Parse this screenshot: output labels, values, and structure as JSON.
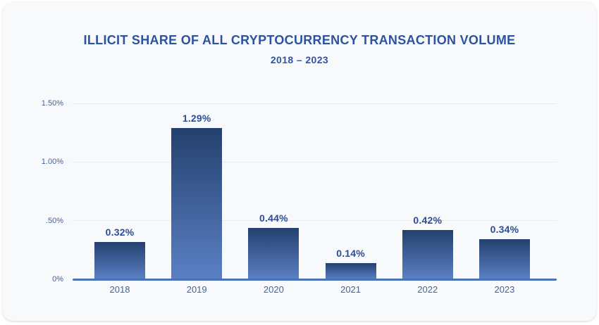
{
  "chart_data": {
    "type": "bar",
    "title": "ILLICIT SHARE OF ALL CRYPTOCURRENCY TRANSACTION VOLUME",
    "subtitle": "2018 – 2023",
    "categories": [
      "2018",
      "2019",
      "2020",
      "2021",
      "2022",
      "2023"
    ],
    "values": [
      0.32,
      1.29,
      0.44,
      0.14,
      0.42,
      0.34
    ],
    "value_labels": [
      "0.32%",
      "1.29%",
      "0.44%",
      "0.14%",
      "0.42%",
      "0.34%"
    ],
    "xlabel": "",
    "ylabel": "",
    "ylim": [
      0,
      1.5
    ],
    "yticks": [
      {
        "value": 1.5,
        "label": "1.50%"
      },
      {
        "value": 1.0,
        "label": "1.00%"
      },
      {
        "value": 0.5,
        "label": ".50%"
      },
      {
        "value": 0.0,
        "label": "0%"
      }
    ],
    "grid": true,
    "legend": false
  },
  "colors": {
    "page_background": "#ffffff",
    "card_background": "#f8f9fa",
    "title": "#2d52a0",
    "subtitle": "#2f55a4",
    "value_label": "#2c4d96",
    "tick_label": "#45639c",
    "gridline": "#e9eaec",
    "axis_line": "#4a72b8",
    "bar_gradient_top": "#24406e",
    "bar_gradient_bottom": "#5b80c4"
  }
}
